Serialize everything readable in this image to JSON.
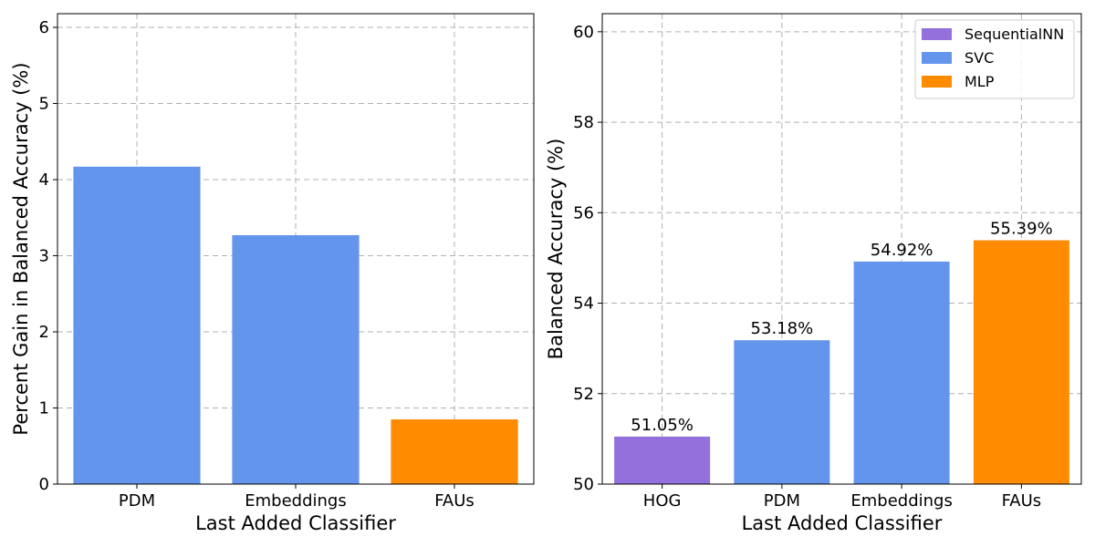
{
  "chart_data": [
    {
      "type": "bar",
      "title": "",
      "xlabel": "Last Added Classifier",
      "ylabel": "Percent Gain in Balanced Accuracy (%)",
      "categories": [
        "PDM",
        "Embeddings",
        "FAUs"
      ],
      "values": [
        4.17,
        3.27,
        0.85
      ],
      "bar_colors": [
        "#6495ED",
        "#6495ED",
        "#FF8C00"
      ],
      "ylim": [
        0,
        6.18
      ],
      "yticks": [
        0,
        1,
        2,
        3,
        4,
        5,
        6
      ],
      "grid": true,
      "legend": null
    },
    {
      "type": "bar",
      "title": "",
      "xlabel": "Last Added Classifier",
      "ylabel": "Balanced Accuracy (%)",
      "categories": [
        "HOG",
        "PDM",
        "Embeddings",
        "FAUs"
      ],
      "values": [
        51.05,
        53.18,
        54.92,
        55.39
      ],
      "data_labels": [
        "51.05%",
        "53.18%",
        "54.92%",
        "55.39%"
      ],
      "bar_colors": [
        "#9370DB",
        "#6495ED",
        "#6495ED",
        "#FF8C00"
      ],
      "ylim": [
        50,
        60.4
      ],
      "yticks": [
        50,
        52,
        54,
        56,
        58,
        60
      ],
      "grid": true,
      "legend": {
        "placement": "top-right",
        "entries": [
          {
            "label": "SequentialNN",
            "color": "#9370DB"
          },
          {
            "label": "SVC",
            "color": "#6495ED"
          },
          {
            "label": "MLP",
            "color": "#FF8C00"
          }
        ]
      }
    }
  ]
}
